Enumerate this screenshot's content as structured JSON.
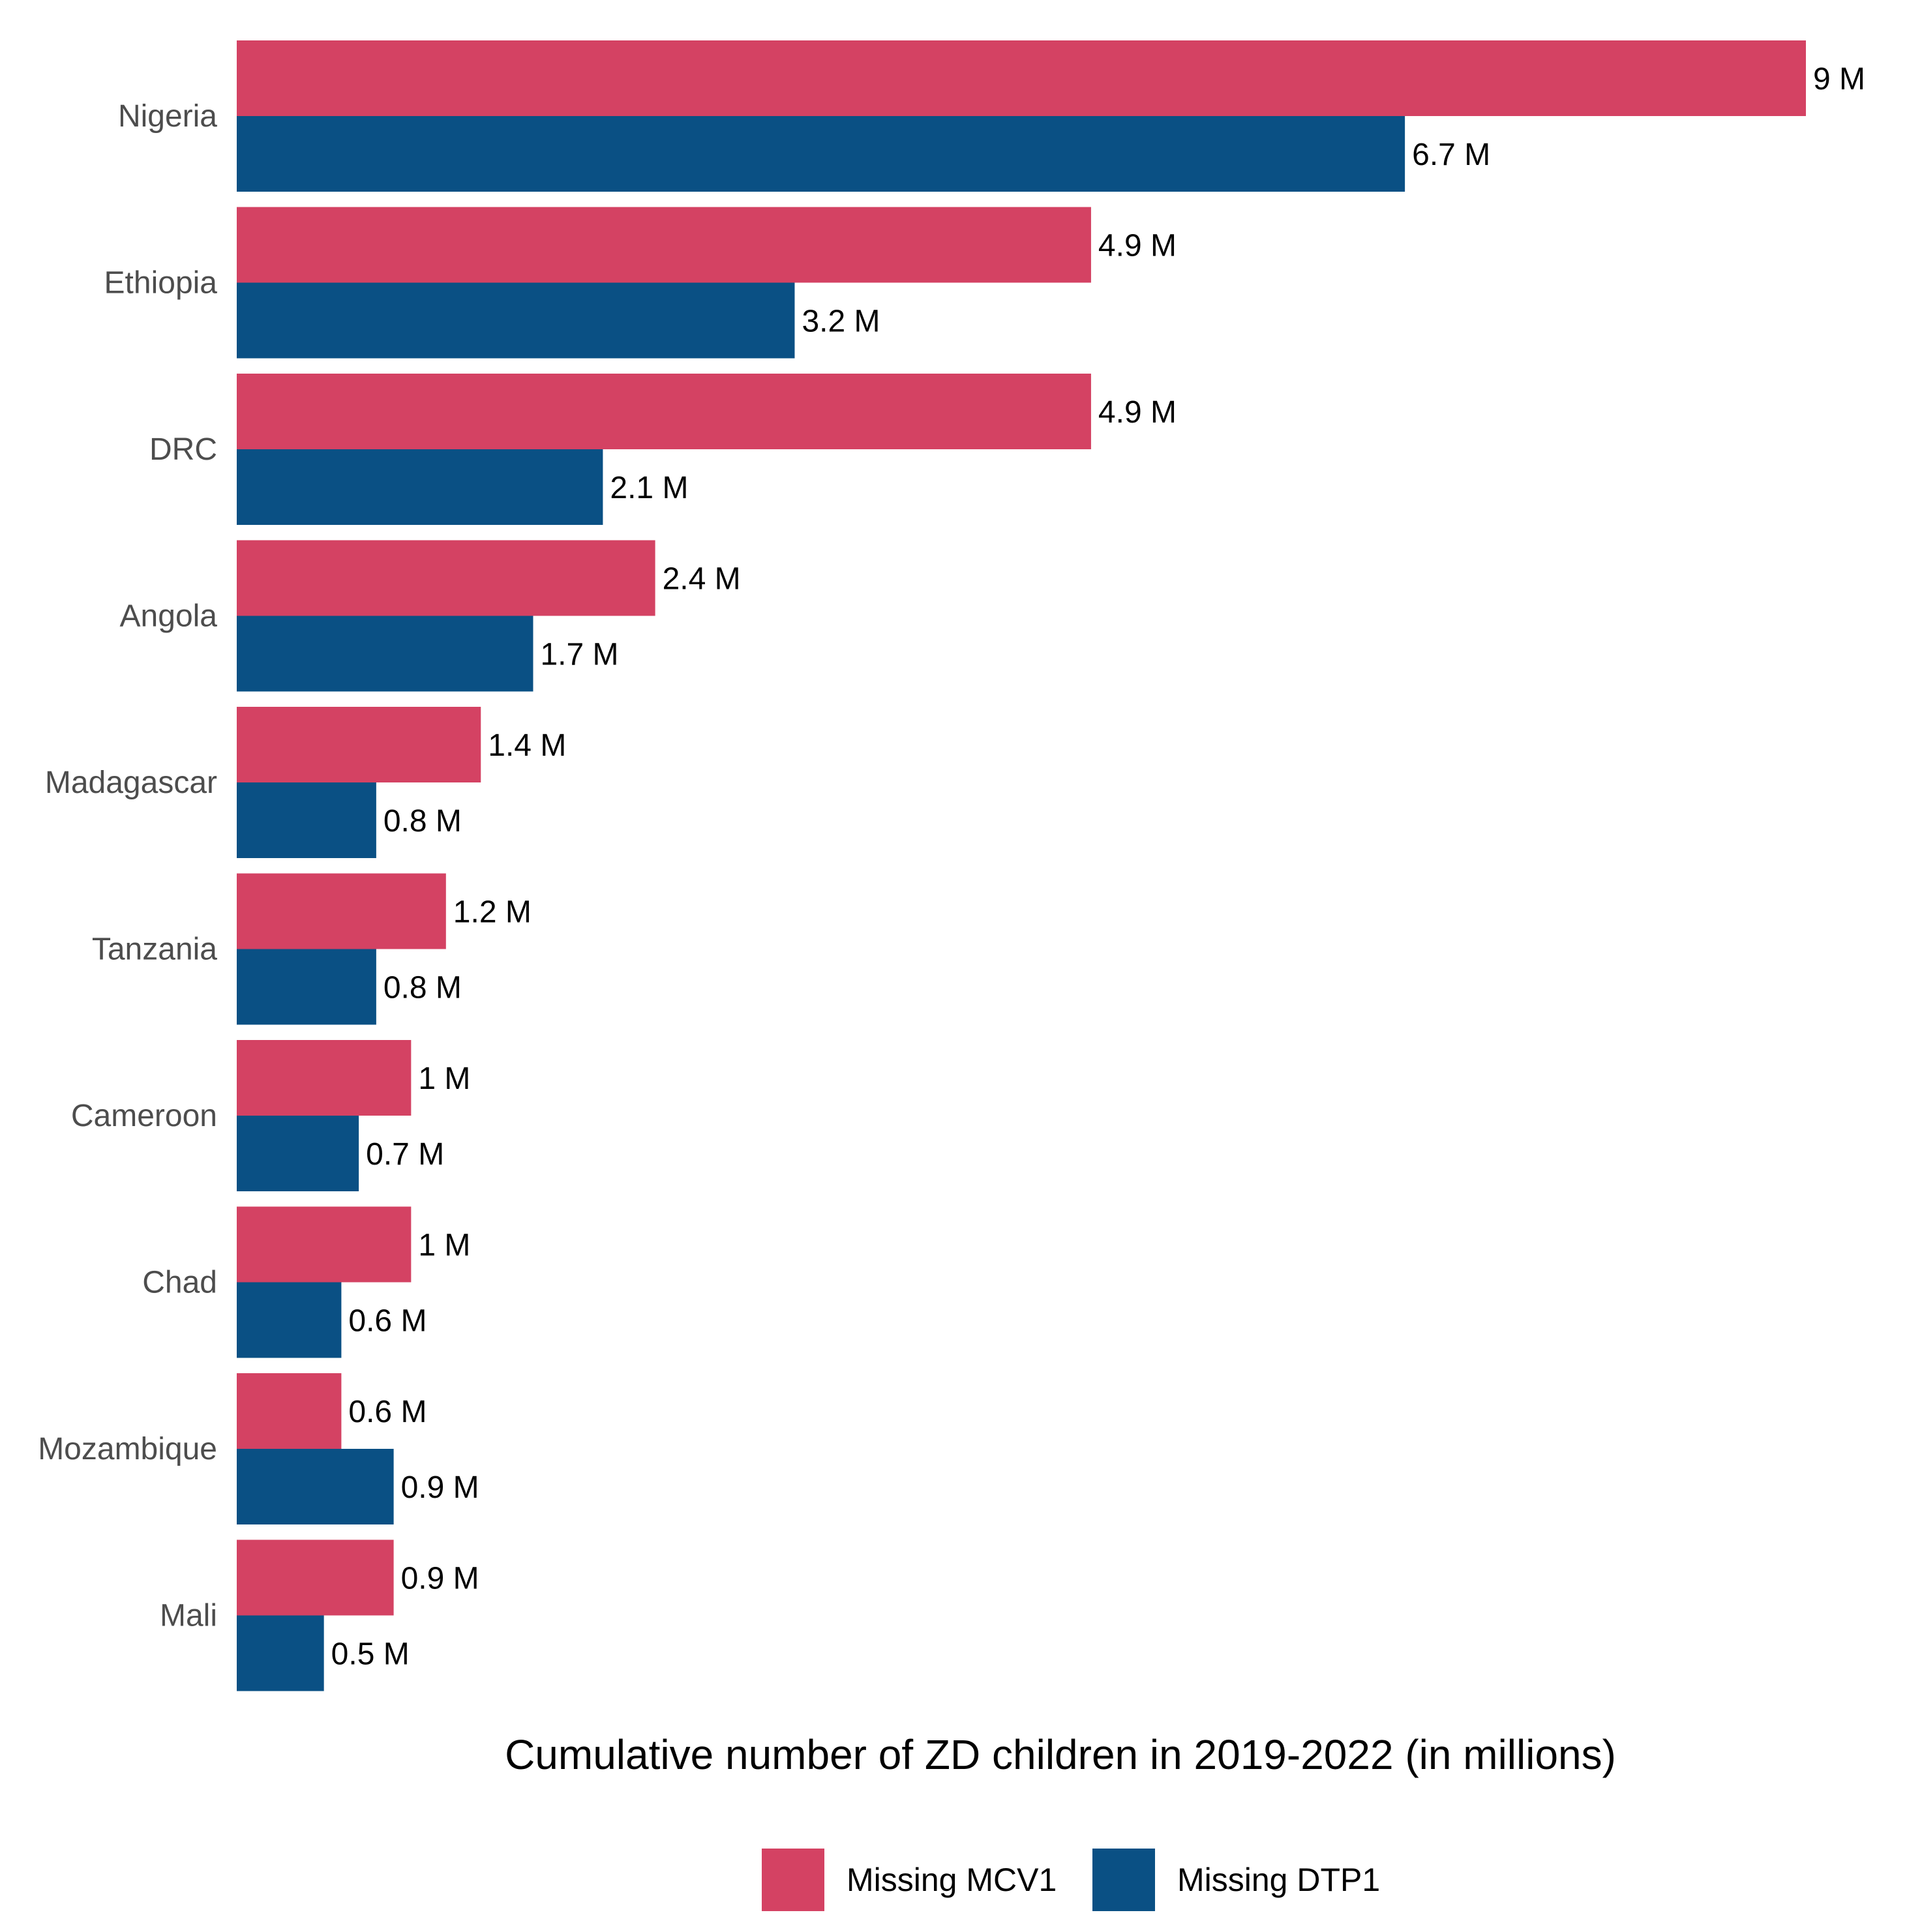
{
  "chart_data": {
    "type": "bar",
    "orientation": "horizontal",
    "categories": [
      "Nigeria",
      "Ethiopia",
      "DRC",
      "Angola",
      "Madagascar",
      "Tanzania",
      "Cameroon",
      "Chad",
      "Mozambique",
      "Mali"
    ],
    "series": [
      {
        "name": "Missing MCV1",
        "color": "#d44263",
        "values": [
          9,
          4.9,
          4.9,
          2.4,
          1.4,
          1.2,
          1,
          1,
          0.6,
          0.9
        ],
        "labels": [
          "9 M",
          "4.9 M",
          "4.9 M",
          "2.4 M",
          "1.4 M",
          "1.2 M",
          "1 M",
          "1 M",
          "0.6 M",
          "0.9 M"
        ]
      },
      {
        "name": "Missing DTP1",
        "color": "#0a5084",
        "values": [
          6.7,
          3.2,
          2.1,
          1.7,
          0.8,
          0.8,
          0.7,
          0.6,
          0.9,
          0.5
        ],
        "labels": [
          "6.7 M",
          "3.2 M",
          "2.1 M",
          "1.7 M",
          "0.8 M",
          "0.8 M",
          "0.7 M",
          "0.6 M",
          "0.9 M",
          "0.5 M"
        ]
      }
    ],
    "title": "",
    "xlabel": "Cumulative number of ZD children in 2019-2022 (in millions)",
    "ylabel": "",
    "xlim": [
      0,
      9
    ],
    "grid": false,
    "legend_position": "bottom"
  }
}
